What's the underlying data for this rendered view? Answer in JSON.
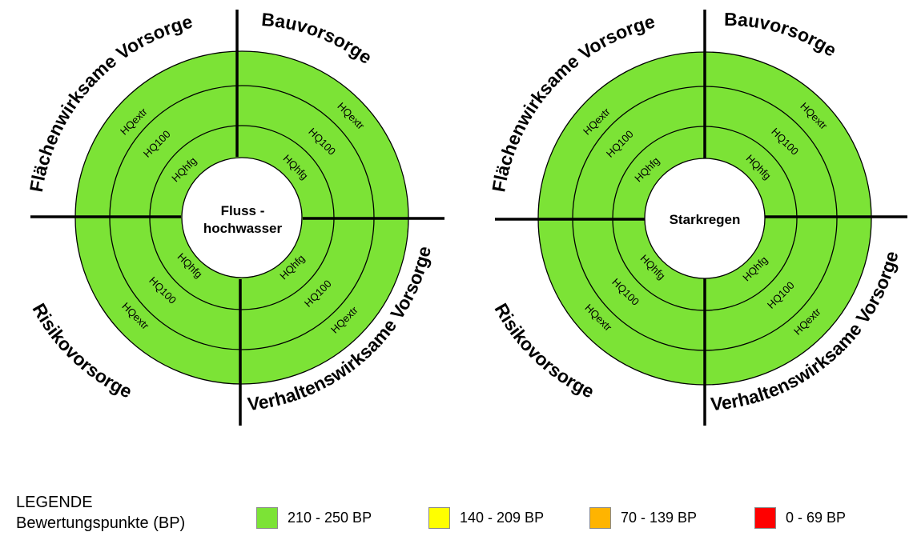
{
  "colors": {
    "green": "#7ce336",
    "yellow": "#ffff00",
    "orange": "#ffb400",
    "red": "#ff0000",
    "line": "#000000"
  },
  "diagrams": [
    {
      "center_label": [
        "Fluss -",
        "hochwasser"
      ],
      "quadrants": {
        "top_left": "Flächenwirksame Vorsorge",
        "top_right": "Bauvorsorge",
        "bottom_left": "Risikovorsorge",
        "bottom_right": "Verhaltenswirksame Vorsorge"
      },
      "rings": [
        "HQhfg",
        "HQ100",
        "HQextr"
      ],
      "ratings": {
        "top_left": "210 - 250 BP",
        "top_right": "210 - 250 BP",
        "bottom_left": "210 - 250 BP",
        "bottom_right": "210 - 250 BP"
      }
    },
    {
      "center_label": [
        "Starkregen"
      ],
      "quadrants": {
        "top_left": "Flächenwirksame Vorsorge",
        "top_right": "Bauvorsorge",
        "bottom_left": "Risikovorsorge",
        "bottom_right": "Verhaltenswirksame Vorsorge"
      },
      "rings": [
        "HQhfg",
        "HQ100",
        "HQextr"
      ],
      "ratings": {
        "top_left": "210 - 250 BP",
        "top_right": "210 - 250 BP",
        "bottom_left": "210 - 250 BP",
        "bottom_right": "210 - 250 BP"
      }
    }
  ],
  "legend": {
    "title_line1": "LEGENDE",
    "title_line2": "Bewertungspunkte (BP)",
    "items": [
      {
        "label": "210 - 250 BP",
        "color": "#7ce336"
      },
      {
        "label": "140 - 209 BP",
        "color": "#ffff00"
      },
      {
        "label": "70 - 139 BP",
        "color": "#ffb400"
      },
      {
        "label": "0 - 69 BP",
        "color": "#ff0000"
      }
    ]
  }
}
